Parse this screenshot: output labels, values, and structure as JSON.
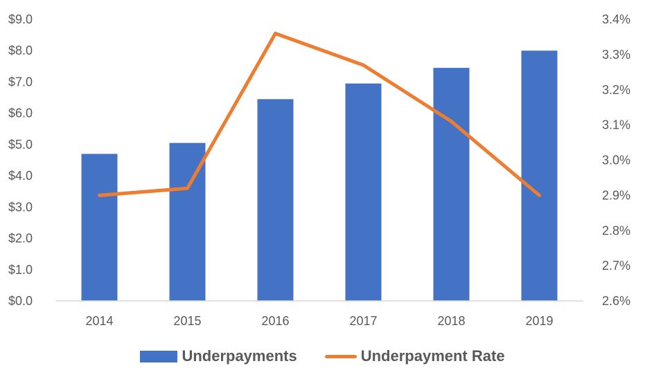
{
  "chart_data": {
    "type": "bar",
    "combo": true,
    "title": "",
    "xlabel": "",
    "ylabel": "",
    "categories": [
      "2014",
      "2015",
      "2016",
      "2017",
      "2018",
      "2019"
    ],
    "series": [
      {
        "name": "Underpayments",
        "type": "bar",
        "axis": "left",
        "color": "#4472C4",
        "values": [
          4.7,
          5.05,
          6.45,
          6.95,
          7.45,
          8.0
        ]
      },
      {
        "name": "Underpayment Rate",
        "type": "line",
        "axis": "right",
        "color": "#ED7D31",
        "values": [
          2.9,
          2.92,
          3.36,
          3.27,
          3.11,
          2.9
        ]
      }
    ],
    "ylim": [
      0,
      9
    ],
    "y2lim": [
      2.6,
      3.4
    ],
    "y_ticks": [
      "$9.0",
      "$8.0",
      "$7.0",
      "$6.0",
      "$5.0",
      "$4.0",
      "$3.0",
      "$2.0",
      "$1.0",
      "$0.0"
    ],
    "y2_ticks": [
      "3.4%",
      "3.3%",
      "3.2%",
      "3.1%",
      "3.0%",
      "2.9%",
      "2.8%",
      "2.7%",
      "2.6%"
    ],
    "grid": false,
    "legend_position": "bottom"
  },
  "legend": {
    "items": [
      {
        "label": "Underpayments",
        "kind": "bar"
      },
      {
        "label": "Underpayment Rate",
        "kind": "line"
      }
    ]
  }
}
